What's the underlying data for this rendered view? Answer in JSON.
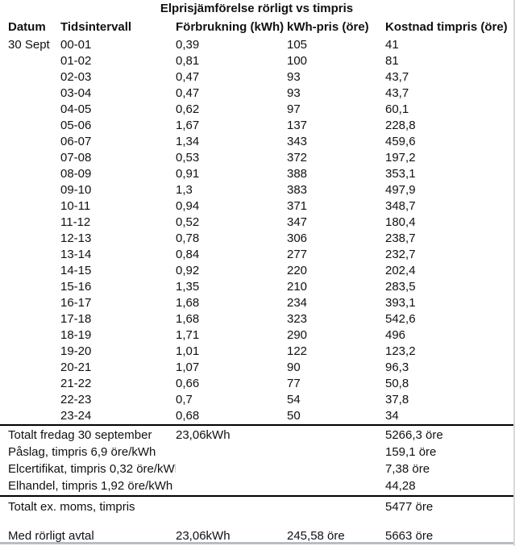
{
  "title": "Elprisjämförelse rörligt vs timpris",
  "table": {
    "headers": [
      "Datum",
      "Tidsintervall",
      "Förbrukning (kWh)",
      "kWh-pris (öre)",
      "Kostnad timpris (öre)"
    ],
    "rows": [
      {
        "datum": "30 Sept",
        "tid": "00-01",
        "forbrukning": "0,39",
        "pris": "105",
        "kostnad": "41"
      },
      {
        "datum": "",
        "tid": "01-02",
        "forbrukning": "0,81",
        "pris": "100",
        "kostnad": "81"
      },
      {
        "datum": "",
        "tid": "02-03",
        "forbrukning": "0,47",
        "pris": "93",
        "kostnad": "43,7"
      },
      {
        "datum": "",
        "tid": "03-04",
        "forbrukning": "0,47",
        "pris": "93",
        "kostnad": "43,7"
      },
      {
        "datum": "",
        "tid": "04-05",
        "forbrukning": "0,62",
        "pris": "97",
        "kostnad": "60,1"
      },
      {
        "datum": "",
        "tid": "05-06",
        "forbrukning": "1,67",
        "pris": "137",
        "kostnad": "228,8"
      },
      {
        "datum": "",
        "tid": "06-07",
        "forbrukning": "1,34",
        "pris": "343",
        "kostnad": "459,6"
      },
      {
        "datum": "",
        "tid": "07-08",
        "forbrukning": "0,53",
        "pris": "372",
        "kostnad": "197,2"
      },
      {
        "datum": "",
        "tid": "08-09",
        "forbrukning": "0,91",
        "pris": "388",
        "kostnad": "353,1"
      },
      {
        "datum": "",
        "tid": "09-10",
        "forbrukning": "1,3",
        "pris": "383",
        "kostnad": "497,9"
      },
      {
        "datum": "",
        "tid": "10-11",
        "forbrukning": "0,94",
        "pris": "371",
        "kostnad": "348,7"
      },
      {
        "datum": "",
        "tid": "11-12",
        "forbrukning": "0,52",
        "pris": "347",
        "kostnad": "180,4"
      },
      {
        "datum": "",
        "tid": "12-13",
        "forbrukning": "0,78",
        "pris": "306",
        "kostnad": "238,7"
      },
      {
        "datum": "",
        "tid": "13-14",
        "forbrukning": "0,84",
        "pris": "277",
        "kostnad": "232,7"
      },
      {
        "datum": "",
        "tid": "14-15",
        "forbrukning": "0,92",
        "pris": "220",
        "kostnad": "202,4"
      },
      {
        "datum": "",
        "tid": "15-16",
        "forbrukning": "1,35",
        "pris": "210",
        "kostnad": "283,5"
      },
      {
        "datum": "",
        "tid": "16-17",
        "forbrukning": "1,68",
        "pris": "234",
        "kostnad": "393,1"
      },
      {
        "datum": "",
        "tid": "17-18",
        "forbrukning": "1,68",
        "pris": "323",
        "kostnad": "542,6"
      },
      {
        "datum": "",
        "tid": "18-19",
        "forbrukning": "1,71",
        "pris": "290",
        "kostnad": "496"
      },
      {
        "datum": "",
        "tid": "19-20",
        "forbrukning": "1,01",
        "pris": "122",
        "kostnad": "123,2"
      },
      {
        "datum": "",
        "tid": "20-21",
        "forbrukning": "1,07",
        "pris": "90",
        "kostnad": "96,3"
      },
      {
        "datum": "",
        "tid": "21-22",
        "forbrukning": "0,66",
        "pris": "77",
        "kostnad": "50,8"
      },
      {
        "datum": "",
        "tid": "22-23",
        "forbrukning": "0,7",
        "pris": "54",
        "kostnad": "37,8"
      },
      {
        "datum": "",
        "tid": "23-24",
        "forbrukning": "0,68",
        "pris": "50",
        "kostnad": "34"
      }
    ]
  },
  "summary": {
    "rows": [
      {
        "label": "Totalt fredag 30 september",
        "forbrukning": "23,06kWh",
        "pris": "",
        "kostnad": "5266,3 öre"
      },
      {
        "label": "Påslag, timpris 6,9 öre/kWh",
        "forbrukning": "",
        "pris": "",
        "kostnad": "159,1 öre"
      },
      {
        "label": "Elcertifikat, timpris 0,32 öre/kWh",
        "forbrukning": "",
        "pris": "",
        "kostnad": "7,38 öre"
      },
      {
        "label": "Elhandel, timpris 1,92 öre/kWh",
        "forbrukning": "",
        "pris": "",
        "kostnad": "44,28"
      }
    ],
    "total_row": {
      "label": "Totalt ex. moms, timpris",
      "forbrukning": "",
      "pris": "",
      "kostnad": "5477 öre"
    },
    "final_row": {
      "label": "Med rörligt avtal",
      "forbrukning": "23,06kWh",
      "pris": "245,58 öre",
      "kostnad": "5663 öre"
    }
  }
}
